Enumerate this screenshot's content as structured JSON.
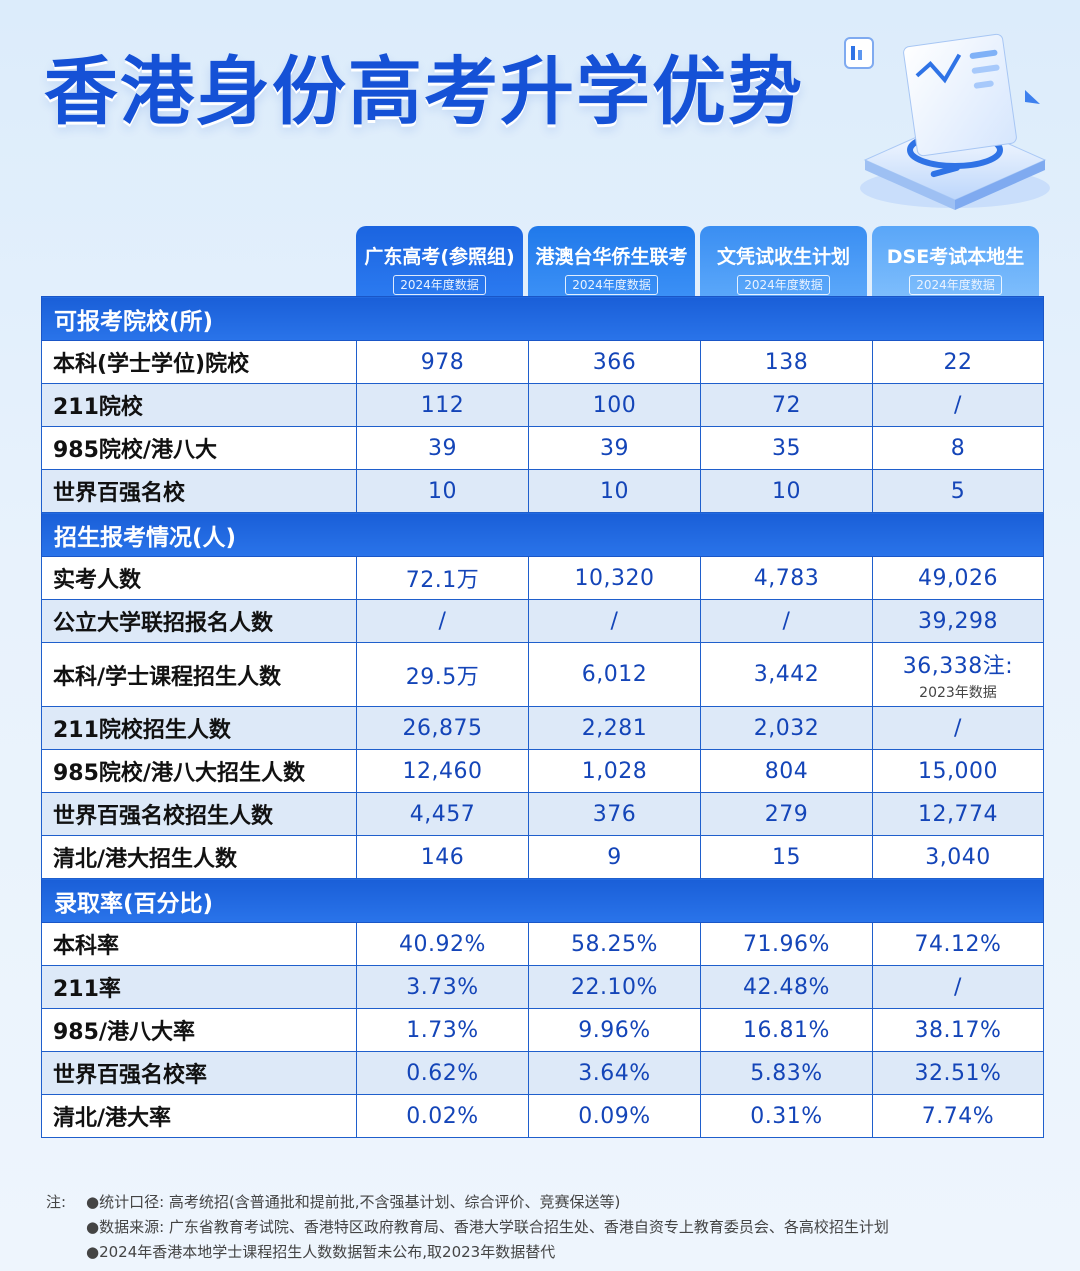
{
  "title": "香港身份高考升学优势",
  "columns": [
    {
      "name": "广东高考(参照组)",
      "year": "2024年度数据"
    },
    {
      "name": "港澳台华侨生联考",
      "year": "2024年度数据"
    },
    {
      "name": "文凭试收生计划",
      "year": "2024年度数据"
    },
    {
      "name": "DSE考试本地生",
      "year": "2024年度数据"
    }
  ],
  "sections": [
    {
      "title": "可报考院校(所)",
      "rows": [
        {
          "label": "本科(学士学位)院校",
          "values": [
            "978",
            "366",
            "138",
            "22"
          ]
        },
        {
          "label": "211院校",
          "values": [
            "112",
            "100",
            "72",
            "/"
          ]
        },
        {
          "label": "985院校/港八大",
          "values": [
            "39",
            "39",
            "35",
            "8"
          ]
        },
        {
          "label": "世界百强名校",
          "values": [
            "10",
            "10",
            "10",
            "5"
          ]
        }
      ]
    },
    {
      "title": "招生报考情况(人)",
      "rows": [
        {
          "label": "实考人数",
          "values": [
            "72.1万",
            "10,320",
            "4,783",
            "49,026"
          ]
        },
        {
          "label": "公立大学联招报名人数",
          "values": [
            "/",
            "/",
            "/",
            "39,298"
          ]
        },
        {
          "label": "本科/学士课程招生人数",
          "values": [
            "29.5万",
            "6,012",
            "3,442",
            "36,338注:"
          ],
          "note": "2023年数据"
        },
        {
          "label": "211院校招生人数",
          "values": [
            "26,875",
            "2,281",
            "2,032",
            "/"
          ]
        },
        {
          "label": "985院校/港八大招生人数",
          "values": [
            "12,460",
            "1,028",
            "804",
            "15,000"
          ]
        },
        {
          "label": "世界百强名校招生人数",
          "values": [
            "4,457",
            "376",
            "279",
            "12,774"
          ]
        },
        {
          "label": "清北/港大招生人数",
          "values": [
            "146",
            "9",
            "15",
            "3,040"
          ]
        }
      ]
    },
    {
      "title": "录取率(百分比)",
      "rows": [
        {
          "label": "本科率",
          "values": [
            "40.92%",
            "58.25%",
            "71.96%",
            "74.12%"
          ]
        },
        {
          "label": "211率",
          "values": [
            "3.73%",
            "22.10%",
            "42.48%",
            "/"
          ]
        },
        {
          "label": "985/港八大率",
          "values": [
            "1.73%",
            "9.96%",
            "16.81%",
            "38.17%"
          ]
        },
        {
          "label": "世界百强名校率",
          "values": [
            "0.62%",
            "3.64%",
            "5.83%",
            "32.51%"
          ]
        },
        {
          "label": "清北/港大率",
          "values": [
            "0.02%",
            "0.09%",
            "0.31%",
            "7.74%"
          ]
        }
      ]
    }
  ],
  "notes": {
    "prefix": "注:",
    "lines": [
      "●统计口径: 高考统招(含普通批和提前批,不含强基计划、综合评价、竞赛保送等)",
      "●数据来源: 广东省教育考试院、香港特区政府教育局、香港大学联合招生处、香港自资专上教育委员会、各高校招生计划",
      "●2024年香港本地学士课程招生人数数据暂未公布,取2023年数据替代"
    ]
  },
  "colors": {
    "title": "#1551d6",
    "section": "#1a5fd8",
    "value": "#1445b8",
    "border": "#1f5fcc"
  }
}
